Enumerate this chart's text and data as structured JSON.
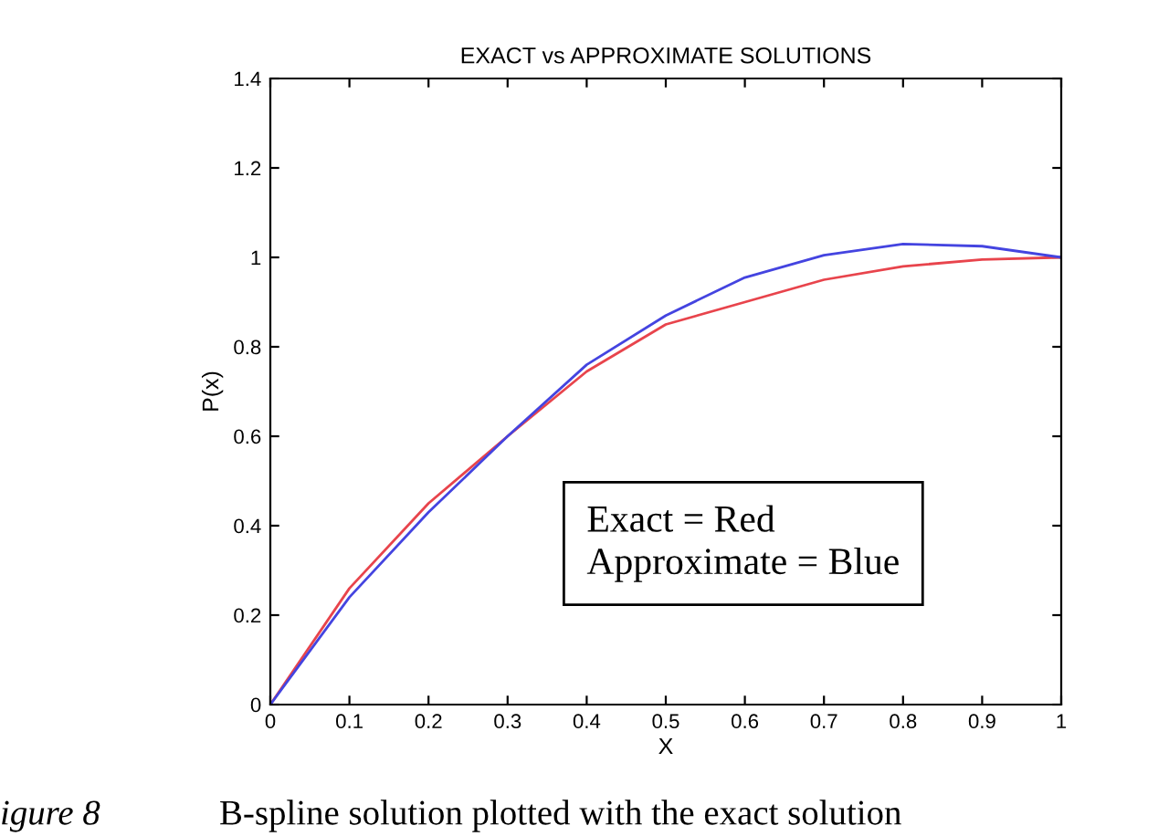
{
  "chart_data": {
    "type": "line",
    "title": "EXACT vs APPROXIMATE SOLUTIONS",
    "xlabel": "X",
    "ylabel": "P(x)",
    "x": [
      0,
      0.1,
      0.2,
      0.3,
      0.4,
      0.5,
      0.6,
      0.7,
      0.8,
      0.9,
      1.0
    ],
    "series": [
      {
        "color": "#e8444c",
        "values": [
          0,
          0.26,
          0.45,
          0.6,
          0.745,
          0.85,
          0.9,
          0.95,
          0.98,
          0.995,
          1.0
        ]
      },
      {
        "color": "#4444e0",
        "values": [
          0,
          0.24,
          0.43,
          0.6,
          0.76,
          0.87,
          0.955,
          1.005,
          1.03,
          1.025,
          1.0
        ]
      }
    ],
    "xlim": [
      0,
      1
    ],
    "ylim": [
      0,
      1.4
    ],
    "xticks": [
      0,
      0.1,
      0.2,
      0.3,
      0.4,
      0.5,
      0.6,
      0.7,
      0.8,
      0.9,
      1
    ],
    "yticks": [
      0,
      0.2,
      0.4,
      0.6,
      0.8,
      1,
      1.2,
      1.4
    ],
    "grid": false,
    "legend": false,
    "annotations": [
      "Exact = Red\nApproximate = Blue",
      "igure 8",
      "B-spline solution plotted with the exact solution"
    ]
  }
}
